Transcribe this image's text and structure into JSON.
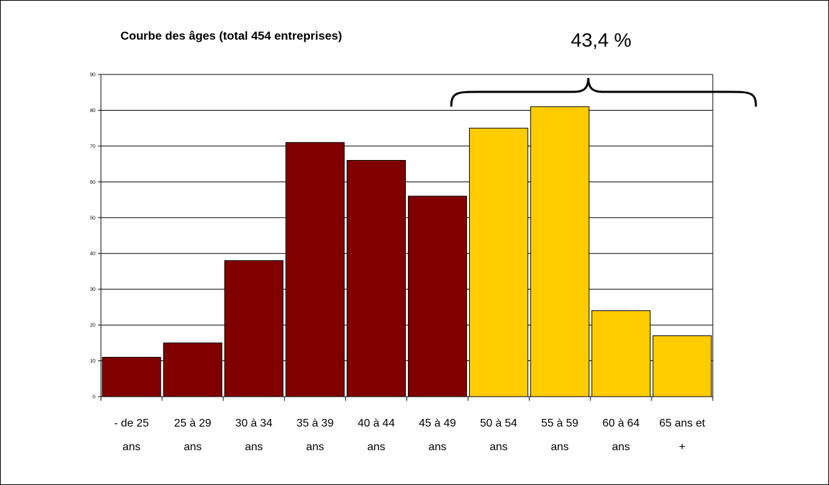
{
  "chart_data": {
    "type": "bar",
    "title": "Courbe des âges (total 454 entreprises)",
    "categories": [
      [
        "- de 25",
        "ans"
      ],
      [
        "25 à 29",
        "ans"
      ],
      [
        "30 à 34",
        "ans"
      ],
      [
        "35 à 39",
        "ans"
      ],
      [
        "40 à 44",
        "ans"
      ],
      [
        "45 à 49",
        "ans"
      ],
      [
        "50 à 54",
        "ans"
      ],
      [
        "55 à 59",
        "ans"
      ],
      [
        "60 à 64",
        "ans"
      ],
      [
        "65 ans et",
        "+"
      ]
    ],
    "values": [
      11,
      15,
      38,
      71,
      66,
      56,
      75,
      81,
      24,
      17
    ],
    "bar_colors": [
      "#800000",
      "#800000",
      "#800000",
      "#800000",
      "#800000",
      "#800000",
      "#FFCC00",
      "#FFCC00",
      "#FFCC00",
      "#FFCC00"
    ],
    "ylim": [
      0,
      90
    ],
    "yticks": [
      "0",
      "10",
      "20",
      "30",
      "40",
      "50",
      "60",
      "70",
      "80",
      "90"
    ],
    "grid": true,
    "annotation": {
      "text": "43,4 %",
      "spans_categories": [
        6,
        9
      ]
    },
    "xlabel": "",
    "ylabel": ""
  }
}
